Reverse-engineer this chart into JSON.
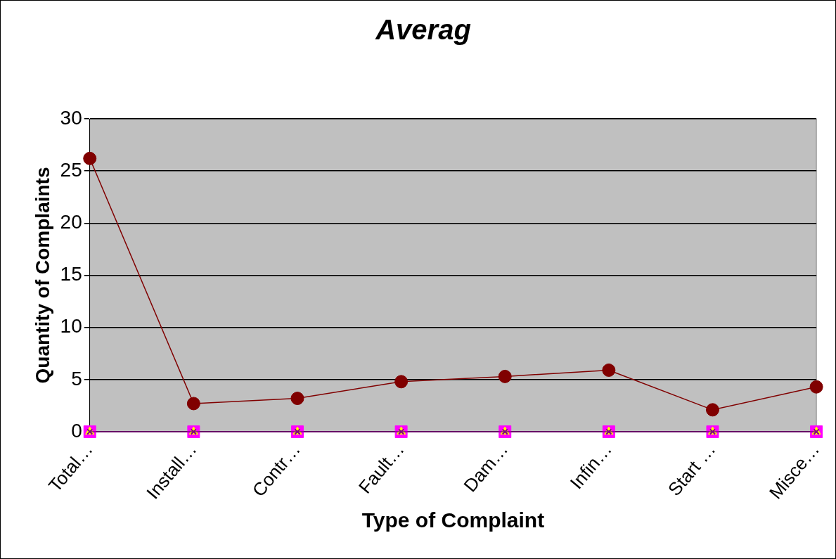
{
  "chart_data": {
    "type": "line",
    "title": "Averag",
    "xlabel": "Type of Complaint",
    "ylabel": "Quantity of Complaints",
    "categories": [
      "Total…",
      "Install…",
      "Contr…",
      "Fault…",
      "Dam…",
      "Infin…",
      "Start …",
      "Misce…"
    ],
    "series": [
      {
        "color": "#800000",
        "marker": "circle",
        "values": [
          26.2,
          2.7,
          3.2,
          4.8,
          5.3,
          5.9,
          2.1,
          4.3
        ]
      },
      {
        "type": "scatter",
        "color": "#ff00ff",
        "marker": "square",
        "values": [
          0,
          0,
          0,
          0,
          0,
          0,
          0,
          0
        ]
      },
      {
        "type": "scatter",
        "color": "#ffff00",
        "marker": "triangle",
        "values": [
          0,
          0,
          0,
          0,
          0,
          0,
          0,
          0
        ]
      },
      {
        "color": "#800080",
        "marker": "cross",
        "values": [
          0,
          0,
          0,
          0,
          0,
          0,
          0,
          0
        ]
      }
    ],
    "ylim": [
      0,
      30
    ],
    "yticks": [
      0,
      5,
      10,
      15,
      20,
      25,
      30
    ],
    "grid": "y",
    "legend": false
  }
}
